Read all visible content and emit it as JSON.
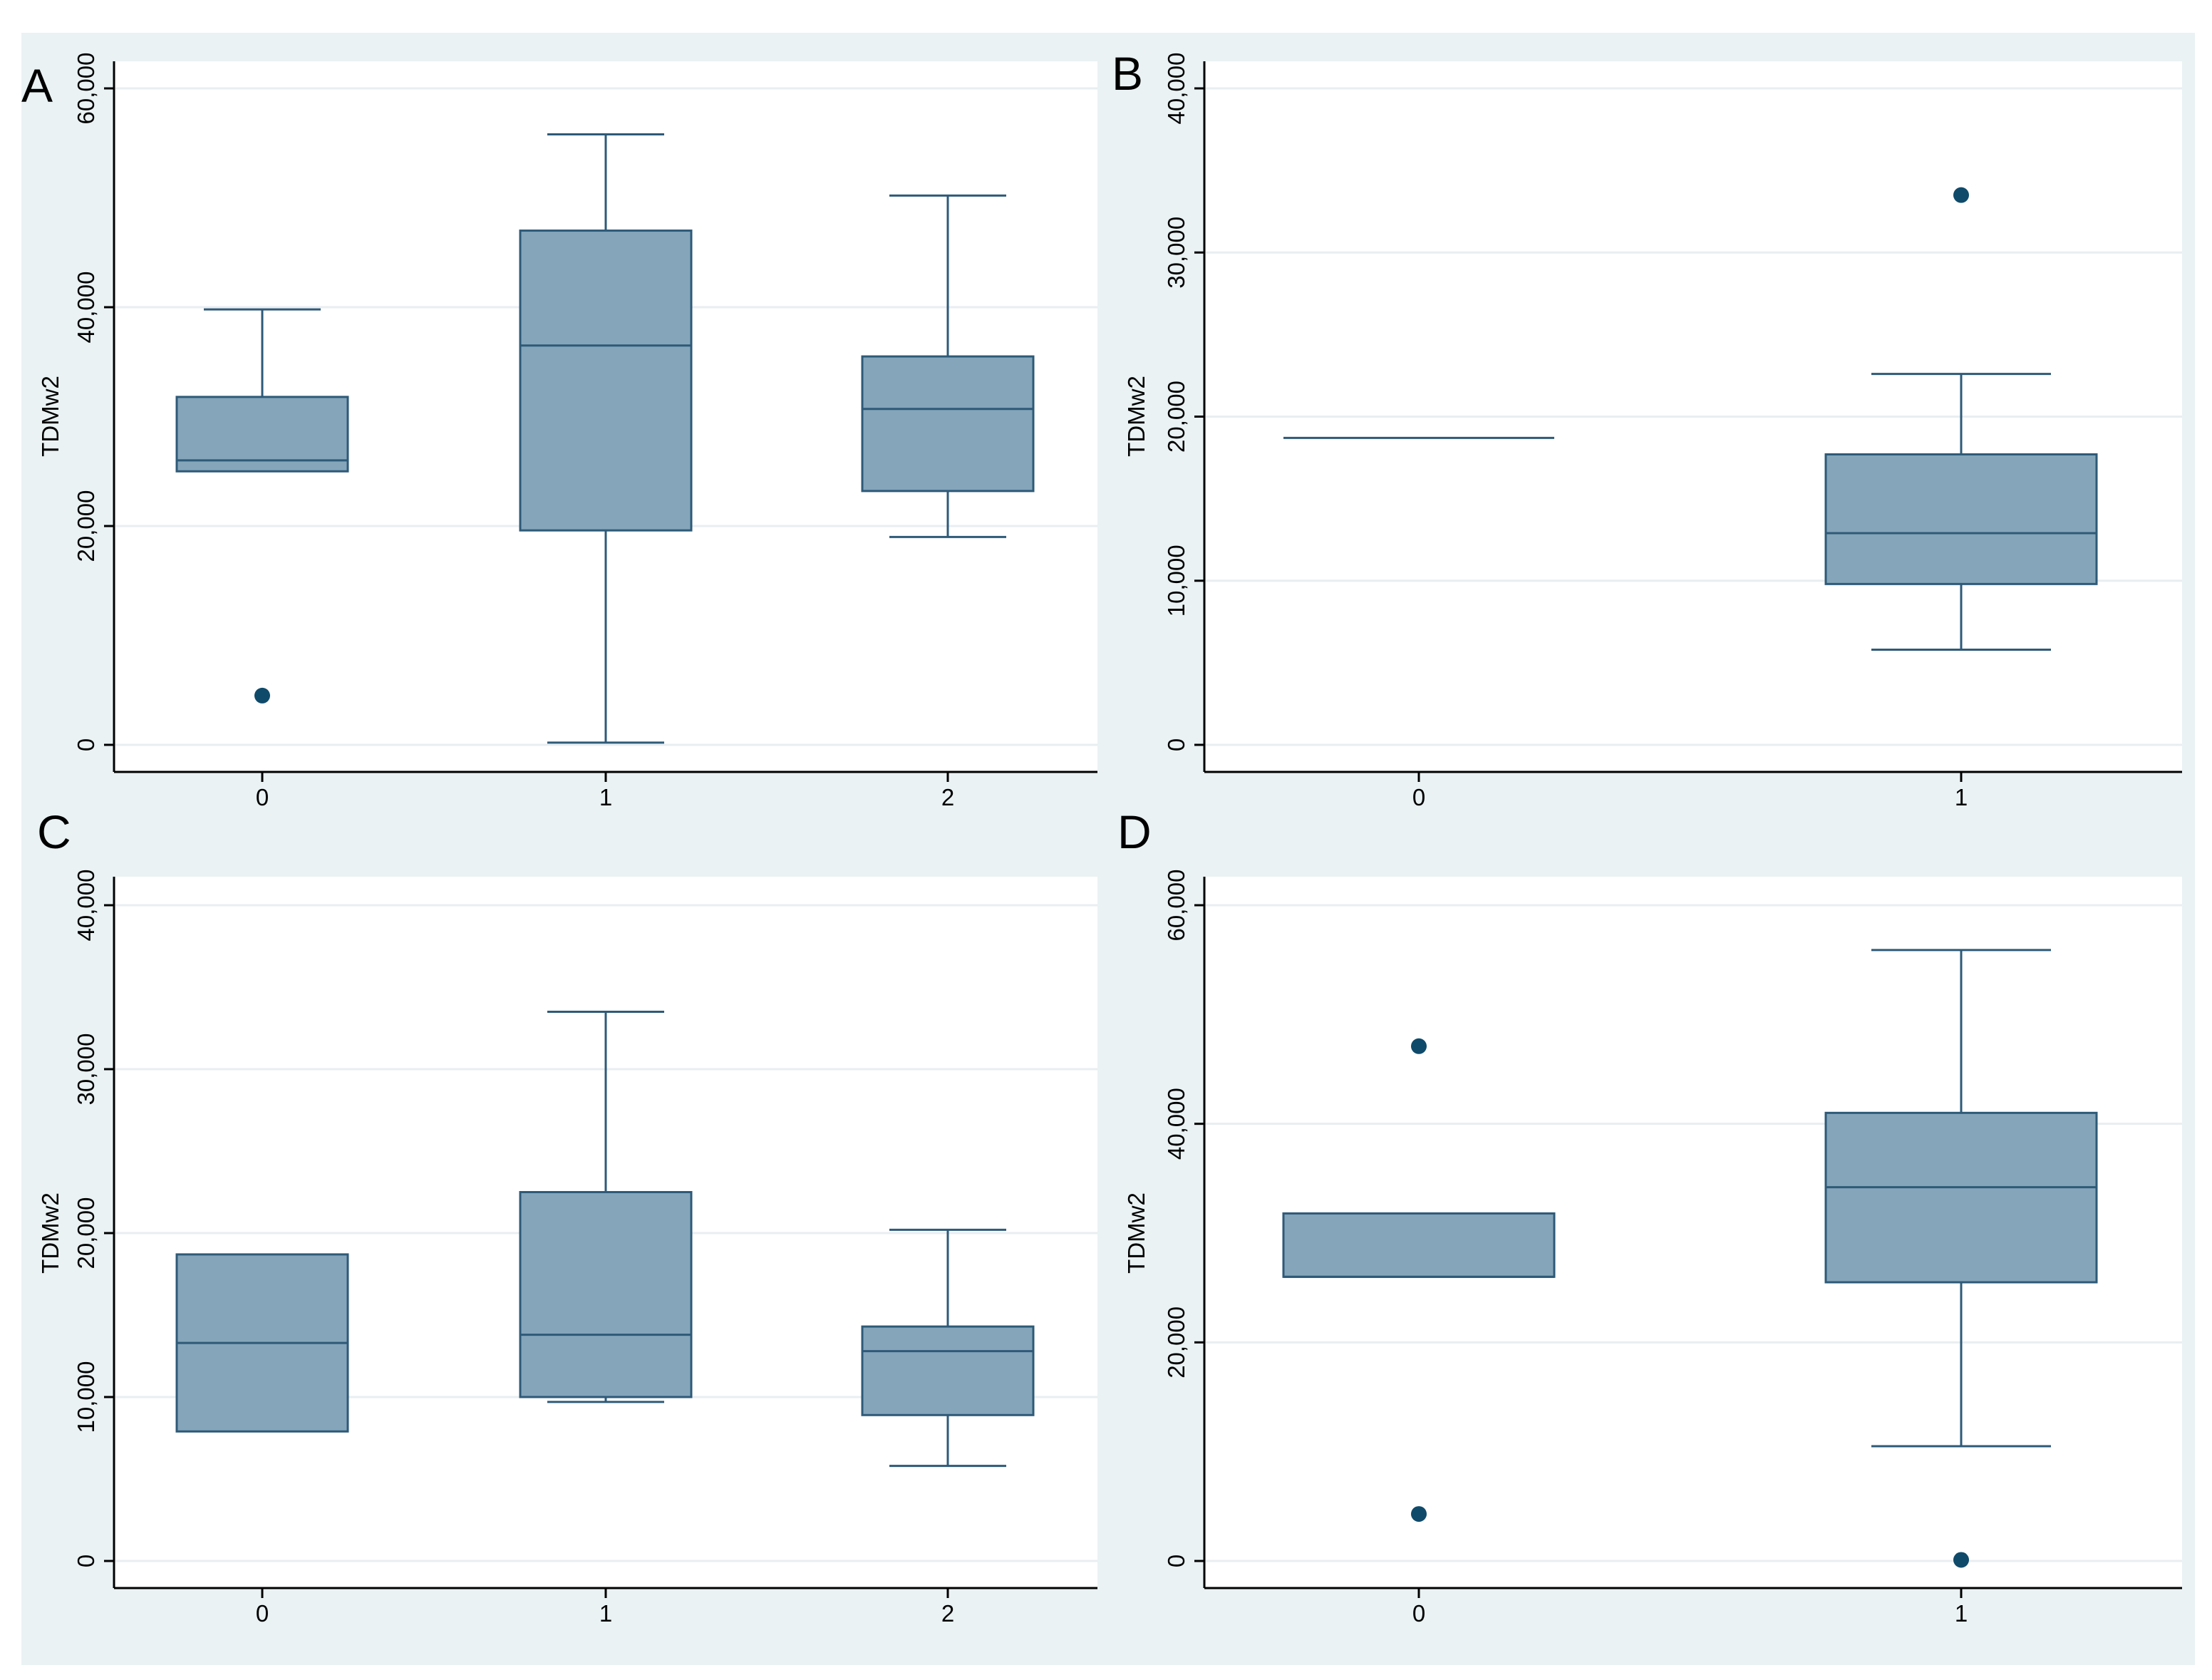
{
  "colors": {
    "outer_background": "#eaf2f3",
    "plot_background": "#ffffff",
    "box_fill": "#85a5ba",
    "box_line": "#2e5a78",
    "outlier": "#0f4a6a",
    "grid": "#e9eef0"
  },
  "chart_data": [
    {
      "panel": "A",
      "type": "box",
      "ylabel": "TDMw2",
      "yticks": [
        "0",
        "20,000",
        "40,000",
        "60,000"
      ],
      "ylim": [
        0,
        60000
      ],
      "categories": [
        "0",
        "1",
        "2"
      ],
      "boxes": [
        {
          "category": "0",
          "whisker_low": 25000,
          "q1": 25000,
          "median": 26000,
          "q3": 31800,
          "whisker_high": 39800,
          "outliers": [
            4500
          ]
        },
        {
          "category": "1",
          "whisker_low": 200,
          "q1": 19600,
          "median": 36500,
          "q3": 47000,
          "whisker_high": 55800,
          "outliers": []
        },
        {
          "category": "2",
          "whisker_low": 19000,
          "q1": 23200,
          "median": 30700,
          "q3": 35500,
          "whisker_high": 50200,
          "outliers": []
        }
      ]
    },
    {
      "panel": "B",
      "type": "box",
      "ylabel": "TDMw2",
      "yticks": [
        "0",
        "10,000",
        "20,000",
        "30,000",
        "40,000"
      ],
      "ylim": [
        0,
        40000
      ],
      "categories": [
        "0",
        "1"
      ],
      "boxes": [
        {
          "category": "0",
          "whisker_low": 18700,
          "q1": 18700,
          "median": 18700,
          "q3": 18700,
          "whisker_high": 18700,
          "outliers": []
        },
        {
          "category": "1",
          "whisker_low": 5800,
          "q1": 9800,
          "median": 12900,
          "q3": 17700,
          "whisker_high": 22600,
          "outliers": [
            33500
          ]
        }
      ]
    },
    {
      "panel": "C",
      "type": "box",
      "ylabel": "TDMw2",
      "yticks": [
        "0",
        "10,000",
        "20,000",
        "30,000",
        "40,000"
      ],
      "ylim": [
        0,
        40000
      ],
      "categories": [
        "0",
        "1",
        "2"
      ],
      "boxes": [
        {
          "category": "0",
          "whisker_low": 7900,
          "q1": 7900,
          "median": 13300,
          "q3": 18700,
          "whisker_high": 18700,
          "outliers": []
        },
        {
          "category": "1",
          "whisker_low": 9700,
          "q1": 10000,
          "median": 13800,
          "q3": 22500,
          "whisker_high": 33500,
          "outliers": []
        },
        {
          "category": "2",
          "whisker_low": 5800,
          "q1": 8900,
          "median": 12800,
          "q3": 14300,
          "whisker_high": 20200,
          "outliers": []
        }
      ]
    },
    {
      "panel": "D",
      "type": "box",
      "ylabel": "TDMw2",
      "yticks": [
        "0",
        "20,000",
        "40,000",
        "60,000"
      ],
      "ylim": [
        0,
        60000
      ],
      "categories": [
        "0",
        "1"
      ],
      "boxes": [
        {
          "category": "0",
          "whisker_low": 26000,
          "q1": 26000,
          "median": 26000,
          "q3": 31800,
          "whisker_high": 31800,
          "outliers": [
            47100,
            4300
          ]
        },
        {
          "category": "1",
          "whisker_low": 10500,
          "q1": 25500,
          "median": 34200,
          "q3": 41000,
          "whisker_high": 55900,
          "outliers": [
            100
          ]
        }
      ]
    }
  ]
}
